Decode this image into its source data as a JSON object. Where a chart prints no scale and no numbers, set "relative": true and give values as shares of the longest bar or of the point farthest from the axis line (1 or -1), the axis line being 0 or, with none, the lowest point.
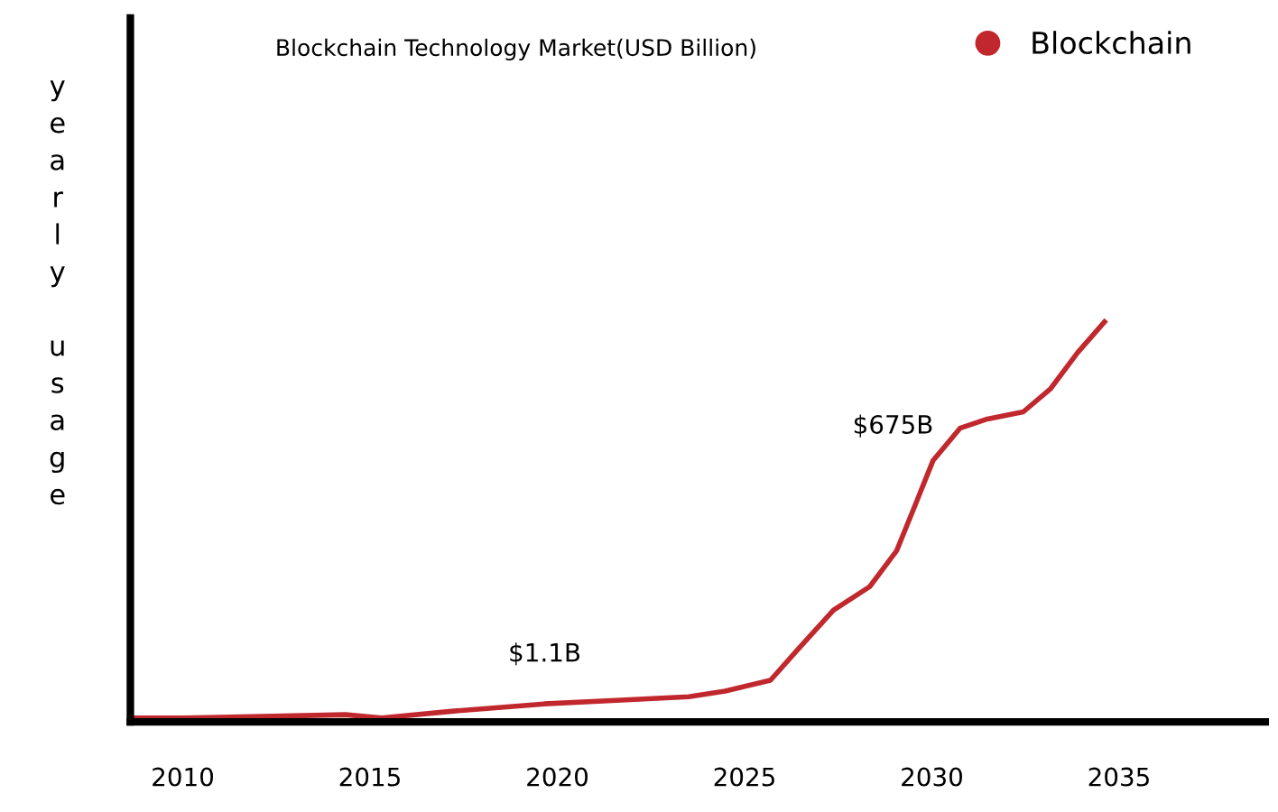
{
  "chart_data": {
    "type": "line",
    "title": "Blockchain Technology Market(USD Billion)",
    "ylabel": "yearly usage",
    "relative": true,
    "xlim": [
      2008.6,
      2038.9
    ],
    "xticks": [
      2010,
      2015,
      2020,
      2025,
      2030,
      2035
    ],
    "grid": false,
    "legend": "top right",
    "marker": "none",
    "line_style": "solid",
    "series": [
      {
        "name": "Blockchain",
        "color": "#c0282d",
        "x": [
          2008.65,
          2010,
          2012.41,
          2014.34,
          2015.31,
          2017.24,
          2019.65,
          2021.58,
          2023.51,
          2024.48,
          2025.69,
          2026.41,
          2027.37,
          2028.34,
          2029.06,
          2029.55,
          2030.03,
          2030.75,
          2031.48,
          2032.44,
          2033.17,
          2033.89,
          2034.61
        ],
        "values": [
          0.01,
          0.01,
          0.014,
          0.018,
          0.01,
          0.027,
          0.045,
          0.054,
          0.063,
          0.077,
          0.104,
          0.18,
          0.279,
          0.338,
          0.428,
          0.541,
          0.653,
          0.734,
          0.757,
          0.775,
          0.833,
          0.923,
          1.0
        ]
      }
    ],
    "annotations": [
      {
        "text": "$1.1B",
        "x": 2020.6,
        "y": 0.05
      },
      {
        "text": "$675B",
        "x": 2029.9,
        "y": 0.62
      }
    ]
  }
}
